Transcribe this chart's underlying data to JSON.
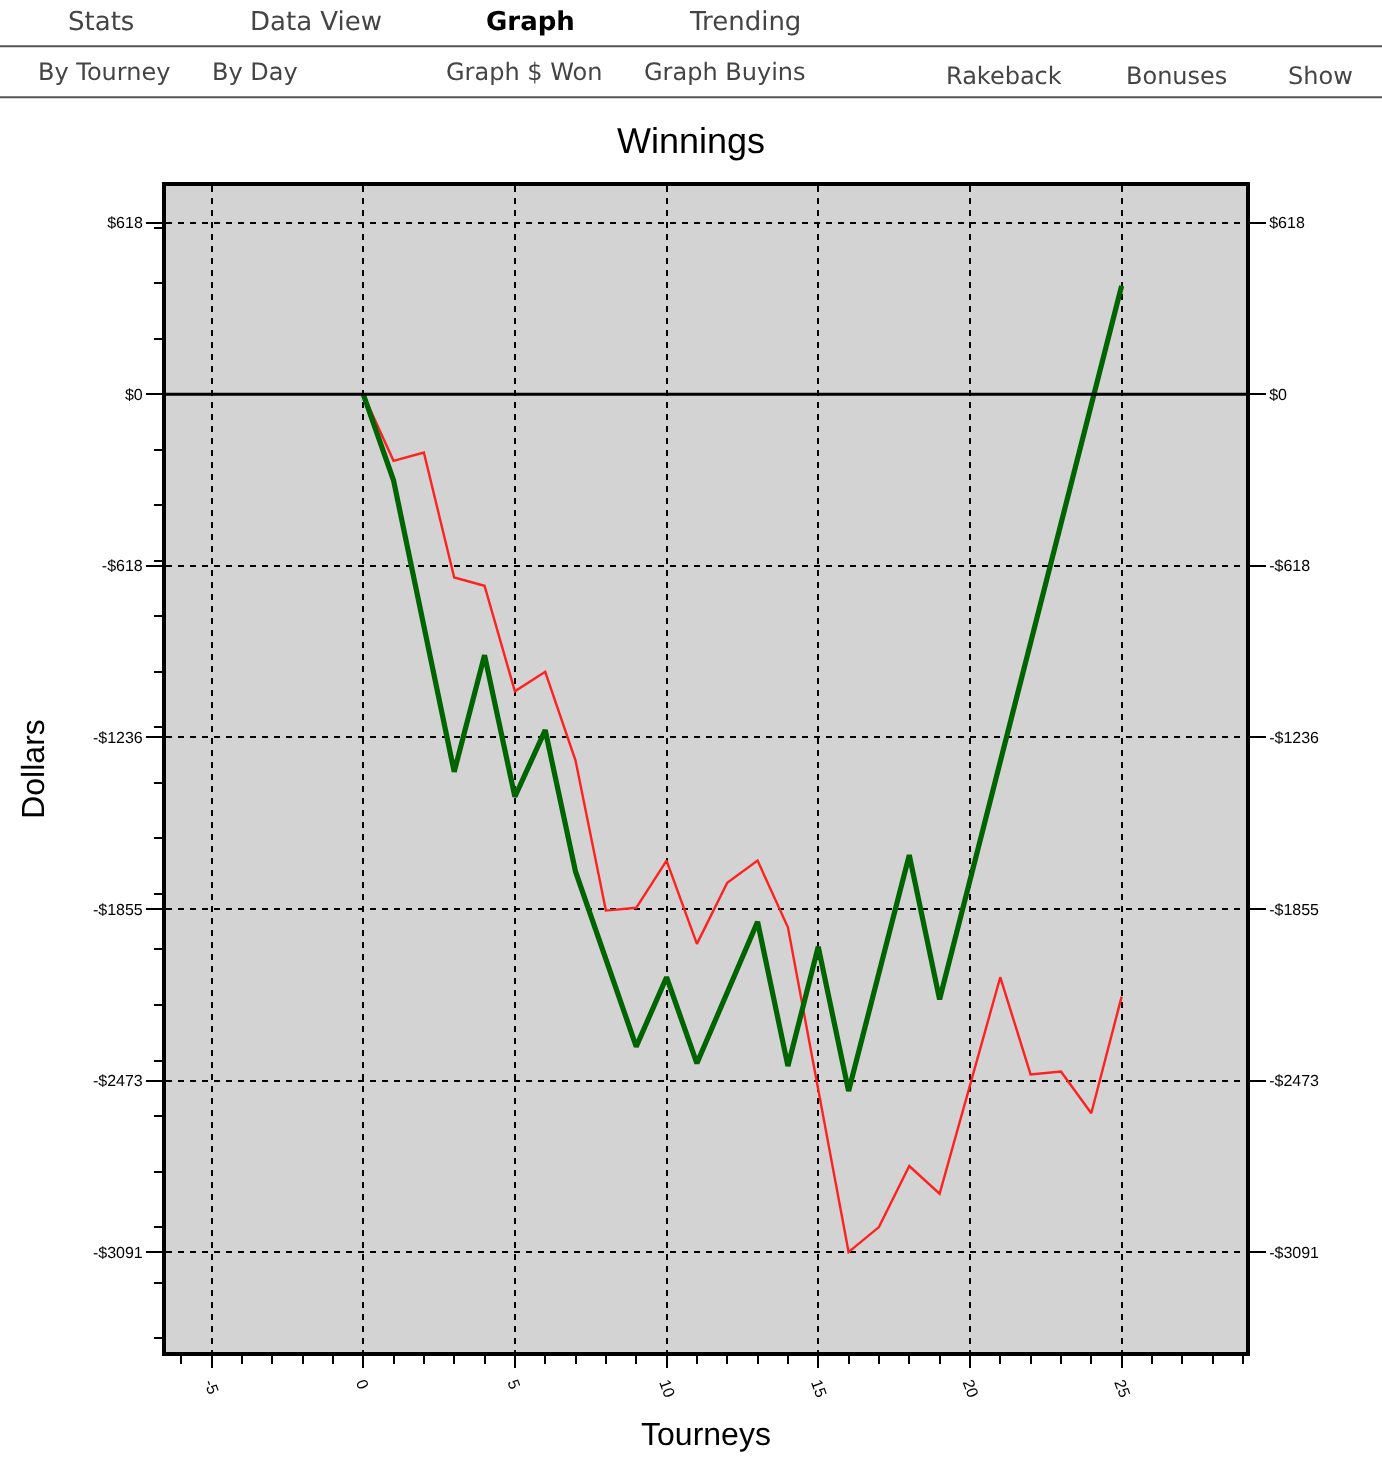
{
  "chart_data": {
    "type": "line",
    "title": "Winnings",
    "xlabel": "Tourneys",
    "ylabel": "Dollars",
    "annotations": [
      "Stats",
      "Data View",
      "Graph",
      "Trending",
      "By Tourney",
      "By Day",
      "Graph $ Won",
      "Graph Buyins",
      "Rakeback",
      "Bonuses",
      "Show"
    ],
    "series": [
      {
        "color": "#ff2020",
        "x": [
          0,
          1,
          2,
          3,
          4,
          5,
          6,
          7,
          8,
          9,
          10,
          11,
          12,
          13,
          14,
          16,
          17,
          18,
          19,
          21,
          22,
          23,
          24,
          25
        ],
        "values": [
          0,
          -240,
          -210,
          -660,
          -690,
          -1070,
          -1000,
          -1320,
          -1860,
          -1850,
          -1680,
          -1980,
          -1760,
          -1680,
          -1920,
          -3090,
          -3000,
          -2780,
          -2880,
          -2100,
          -2450,
          -2440,
          -2590,
          -2170
        ]
      },
      {
        "color": "#006400",
        "x": [
          0,
          1,
          3,
          4,
          5,
          6,
          7,
          9,
          10,
          11,
          13,
          14,
          15,
          16,
          18,
          19,
          25
        ],
        "values": [
          0,
          -310,
          -1360,
          -940,
          -1450,
          -1210,
          -1720,
          -2350,
          -2100,
          -2410,
          -1900,
          -2420,
          -1990,
          -2510,
          -1660,
          -2180,
          390
        ]
      }
    ],
    "xlim": [
      -6.5,
      29.1
    ],
    "xticks": [
      -5,
      0,
      5,
      10,
      15,
      20,
      25
    ],
    "ylim": [
      -3450,
      750
    ],
    "yticks": [
      {
        "value": 618,
        "label": "$618"
      },
      {
        "value": 0,
        "label": "$0"
      },
      {
        "value": -618,
        "label": "-$618"
      },
      {
        "value": -1236,
        "label": "-$1236"
      },
      {
        "value": -1855,
        "label": "-$1855"
      },
      {
        "value": -2473,
        "label": "-$2473"
      },
      {
        "value": -3091,
        "label": "-$3091"
      }
    ],
    "y2lim": [
      -3450,
      750
    ],
    "y2ticks": [
      {
        "value": 618,
        "label": "$618"
      },
      {
        "value": 0,
        "label": "$0"
      },
      {
        "value": -618,
        "label": "-$618"
      },
      {
        "value": -1236,
        "label": "-$1236"
      },
      {
        "value": -1855,
        "label": "-$1855"
      },
      {
        "value": -2473,
        "label": "-$2473"
      },
      {
        "value": -3091,
        "label": "-$3091"
      }
    ],
    "ref_lines": [
      {
        "axis": "y",
        "value": 0,
        "color": "#000000"
      }
    ],
    "grid": true,
    "marker": "none",
    "line_style": "solid"
  }
}
